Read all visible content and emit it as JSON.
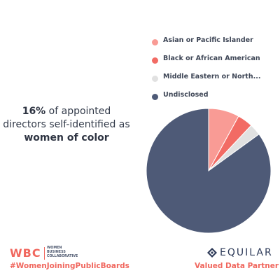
{
  "headline": {
    "pct": "16%",
    "line1_rest": " of appointed",
    "line2": "directors self-identified as",
    "line3": "women of color"
  },
  "chart_data": {
    "type": "pie",
    "title": "",
    "labels": [
      "Asian or Pacific Islander",
      "Black or African American",
      "Middle Eastern or North...",
      "Undisclosed"
    ],
    "values": [
      8,
      4,
      3,
      85
    ],
    "colors": [
      "#f99b95",
      "#f26b64",
      "#e1e1e1",
      "#4e5a77"
    ],
    "legend_position": "top-right"
  },
  "footer": {
    "wbc_logo": "WBC",
    "wbc_subtitle": "WOMEN\nBUSINESS\nCOLLABORATIVE",
    "hashtag": "#WomenJoiningPublicBoards",
    "equilar_logo": "EQUILAR",
    "partner_text": "Valued Data Partner",
    "accent_color": "#f0675e",
    "equilar_color": "#2d3a58"
  }
}
